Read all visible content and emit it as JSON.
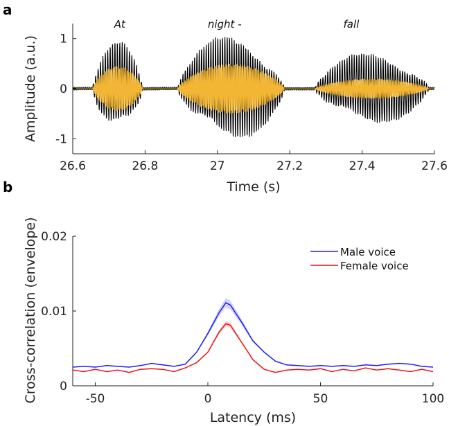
{
  "chart_data": [
    {
      "panel": "a",
      "type": "line",
      "title": "",
      "xlabel": "Time (s)",
      "ylabel": "Amplitude (a.u.)",
      "xlim": [
        26.6,
        27.6
      ],
      "ylim": [
        -1.3,
        1.3
      ],
      "xticks": [
        26.6,
        26.8,
        27,
        27.2,
        27.4,
        27.6
      ],
      "xtick_labels": [
        "26.6",
        "26.8",
        "27",
        "27.2",
        "27.4",
        "27.6"
      ],
      "yticks": [
        1,
        0,
        -1
      ],
      "ytick_labels": [
        "1",
        "0",
        "-1"
      ],
      "word_labels": [
        {
          "text": "At",
          "x": 26.73
        },
        {
          "text": "night -",
          "x": 27.02
        },
        {
          "text": "fall",
          "x": 27.37
        }
      ],
      "segments": [
        {
          "start": 26.655,
          "end": 26.8,
          "peak": 0.95,
          "inner_peak": 0.45,
          "freq_hz": 150
        },
        {
          "start": 26.89,
          "end": 27.2,
          "peak": 1.1,
          "inner_peak": 0.5,
          "freq_hz": 155
        },
        {
          "start": 27.27,
          "end": 27.6,
          "peak": 0.75,
          "inner_peak": 0.2,
          "freq_hz": 150
        }
      ],
      "series": [
        {
          "role": "waveform",
          "color": "#000000"
        },
        {
          "role": "filtered",
          "color": "#f2b634"
        }
      ],
      "grid": false
    },
    {
      "panel": "b",
      "type": "line",
      "title": "",
      "xlabel": "Latency (ms)",
      "ylabel": "Cross-correlation (envelope)",
      "xlim": [
        -60,
        100
      ],
      "ylim": [
        0,
        0.02
      ],
      "xticks": [
        -50,
        0,
        50,
        100
      ],
      "xtick_labels": [
        "-50",
        "0",
        "50",
        "100"
      ],
      "yticks": [
        0,
        0.01,
        0.02
      ],
      "ytick_labels": [
        "0",
        "0.01",
        "0.02"
      ],
      "legend_position": "top-right",
      "x": [
        -60,
        -55,
        -50,
        -45,
        -40,
        -35,
        -30,
        -25,
        -20,
        -15,
        -10,
        -5,
        0,
        5,
        8,
        10,
        15,
        20,
        25,
        30,
        35,
        40,
        45,
        50,
        55,
        60,
        65,
        70,
        75,
        80,
        85,
        90,
        95,
        100
      ],
      "series": [
        {
          "name": "Male voice",
          "color": "#1a1aff",
          "shade": "#c8c8f5",
          "values": [
            0.0025,
            0.0026,
            0.0025,
            0.0027,
            0.0026,
            0.0025,
            0.0027,
            0.003,
            0.0028,
            0.0026,
            0.0029,
            0.0045,
            0.007,
            0.0098,
            0.0111,
            0.0108,
            0.0085,
            0.006,
            0.0045,
            0.0033,
            0.0028,
            0.0027,
            0.0026,
            0.0027,
            0.0026,
            0.0027,
            0.0026,
            0.0028,
            0.0027,
            0.0029,
            0.003,
            0.0029,
            0.0026,
            0.0025
          ]
        },
        {
          "name": "Female voice",
          "color": "#ee1111",
          "shade": "#f5c8c8",
          "values": [
            0.0021,
            0.0019,
            0.0022,
            0.0019,
            0.0021,
            0.0018,
            0.0022,
            0.0023,
            0.0022,
            0.0019,
            0.0024,
            0.0031,
            0.0045,
            0.0072,
            0.0083,
            0.0081,
            0.0058,
            0.0035,
            0.0022,
            0.0018,
            0.0021,
            0.0022,
            0.0021,
            0.0023,
            0.0019,
            0.0022,
            0.002,
            0.0024,
            0.0021,
            0.0023,
            0.0021,
            0.0019,
            0.0022,
            0.0019
          ]
        }
      ],
      "grid": false
    }
  ]
}
